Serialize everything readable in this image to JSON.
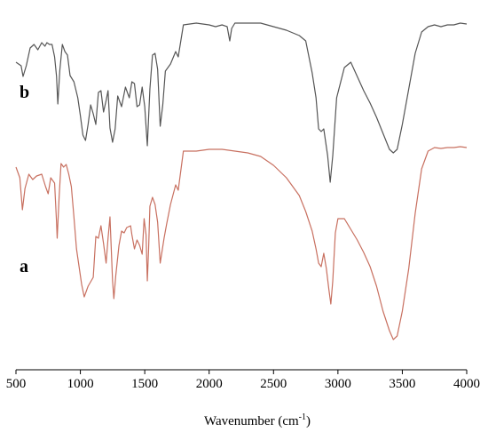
{
  "chart_data": {
    "type": "line",
    "title": "",
    "xlabel_main": "Wavenumber (cm",
    "xlabel_sup": "-1",
    "xlabel_end": ")",
    "ylabel": "",
    "xlim": [
      500,
      4000
    ],
    "xticks": [
      500,
      1000,
      1500,
      2000,
      2500,
      3000,
      3500,
      4000
    ],
    "y_axis_shown": false,
    "grid": false,
    "series": [
      {
        "label": "b",
        "color": "#555555",
        "points": [
          [
            500,
            70
          ],
          [
            540,
            74
          ],
          [
            555,
            86
          ],
          [
            580,
            74
          ],
          [
            610,
            54
          ],
          [
            640,
            50
          ],
          [
            670,
            56
          ],
          [
            700,
            48
          ],
          [
            725,
            52
          ],
          [
            740,
            48
          ],
          [
            760,
            50
          ],
          [
            780,
            50
          ],
          [
            800,
            64
          ],
          [
            815,
            86
          ],
          [
            825,
            117
          ],
          [
            840,
            80
          ],
          [
            860,
            50
          ],
          [
            880,
            58
          ],
          [
            900,
            62
          ],
          [
            920,
            85
          ],
          [
            950,
            92
          ],
          [
            980,
            110
          ],
          [
            1000,
            130
          ],
          [
            1020,
            152
          ],
          [
            1040,
            158
          ],
          [
            1060,
            140
          ],
          [
            1080,
            118
          ],
          [
            1100,
            128
          ],
          [
            1120,
            140
          ],
          [
            1140,
            104
          ],
          [
            1160,
            102
          ],
          [
            1180,
            126
          ],
          [
            1200,
            113
          ],
          [
            1215,
            102
          ],
          [
            1230,
            144
          ],
          [
            1250,
            160
          ],
          [
            1270,
            145
          ],
          [
            1290,
            108
          ],
          [
            1320,
            120
          ],
          [
            1350,
            98
          ],
          [
            1380,
            110
          ],
          [
            1400,
            92
          ],
          [
            1420,
            94
          ],
          [
            1440,
            120
          ],
          [
            1460,
            118
          ],
          [
            1480,
            98
          ],
          [
            1500,
            120
          ],
          [
            1520,
            164
          ],
          [
            1540,
            100
          ],
          [
            1560,
            62
          ],
          [
            1580,
            60
          ],
          [
            1600,
            78
          ],
          [
            1620,
            142
          ],
          [
            1640,
            118
          ],
          [
            1660,
            80
          ],
          [
            1700,
            72
          ],
          [
            1740,
            58
          ],
          [
            1760,
            64
          ],
          [
            1800,
            28
          ],
          [
            1900,
            26
          ],
          [
            2000,
            28
          ],
          [
            2050,
            30
          ],
          [
            2100,
            28
          ],
          [
            2140,
            30
          ],
          [
            2160,
            46
          ],
          [
            2175,
            32
          ],
          [
            2200,
            26
          ],
          [
            2300,
            26
          ],
          [
            2400,
            26
          ],
          [
            2500,
            30
          ],
          [
            2600,
            34
          ],
          [
            2700,
            40
          ],
          [
            2750,
            46
          ],
          [
            2800,
            82
          ],
          [
            2830,
            110
          ],
          [
            2850,
            145
          ],
          [
            2870,
            148
          ],
          [
            2890,
            145
          ],
          [
            2920,
            175
          ],
          [
            2940,
            205
          ],
          [
            2960,
            175
          ],
          [
            2990,
            110
          ],
          [
            3050,
            76
          ],
          [
            3100,
            70
          ],
          [
            3150,
            86
          ],
          [
            3200,
            102
          ],
          [
            3250,
            116
          ],
          [
            3300,
            132
          ],
          [
            3350,
            150
          ],
          [
            3400,
            168
          ],
          [
            3430,
            172
          ],
          [
            3460,
            168
          ],
          [
            3500,
            140
          ],
          [
            3550,
            100
          ],
          [
            3600,
            60
          ],
          [
            3650,
            36
          ],
          [
            3700,
            30
          ],
          [
            3750,
            28
          ],
          [
            3800,
            30
          ],
          [
            3850,
            28
          ],
          [
            3900,
            28
          ],
          [
            3950,
            26
          ],
          [
            4000,
            27
          ]
        ]
      },
      {
        "label": "a",
        "color": "#c87060",
        "points": [
          [
            500,
            188
          ],
          [
            530,
            200
          ],
          [
            550,
            236
          ],
          [
            570,
            212
          ],
          [
            600,
            196
          ],
          [
            630,
            202
          ],
          [
            660,
            198
          ],
          [
            700,
            196
          ],
          [
            730,
            210
          ],
          [
            750,
            218
          ],
          [
            770,
            200
          ],
          [
            800,
            206
          ],
          [
            815,
            250
          ],
          [
            820,
            268
          ],
          [
            835,
            222
          ],
          [
            850,
            184
          ],
          [
            870,
            188
          ],
          [
            890,
            185
          ],
          [
            910,
            196
          ],
          [
            930,
            210
          ],
          [
            950,
            244
          ],
          [
            970,
            280
          ],
          [
            990,
            300
          ],
          [
            1010,
            320
          ],
          [
            1030,
            334
          ],
          [
            1060,
            322
          ],
          [
            1100,
            312
          ],
          [
            1120,
            266
          ],
          [
            1140,
            268
          ],
          [
            1160,
            254
          ],
          [
            1180,
            274
          ],
          [
            1200,
            296
          ],
          [
            1215,
            268
          ],
          [
            1230,
            244
          ],
          [
            1250,
            316
          ],
          [
            1260,
            336
          ],
          [
            1275,
            310
          ],
          [
            1300,
            276
          ],
          [
            1320,
            260
          ],
          [
            1340,
            262
          ],
          [
            1360,
            256
          ],
          [
            1390,
            254
          ],
          [
            1400,
            264
          ],
          [
            1420,
            280
          ],
          [
            1440,
            270
          ],
          [
            1460,
            276
          ],
          [
            1480,
            286
          ],
          [
            1495,
            246
          ],
          [
            1510,
            264
          ],
          [
            1520,
            316
          ],
          [
            1530,
            280
          ],
          [
            1540,
            232
          ],
          [
            1560,
            222
          ],
          [
            1580,
            230
          ],
          [
            1600,
            250
          ],
          [
            1620,
            296
          ],
          [
            1650,
            268
          ],
          [
            1670,
            252
          ],
          [
            1700,
            230
          ],
          [
            1740,
            208
          ],
          [
            1760,
            214
          ],
          [
            1800,
            170
          ],
          [
            1900,
            170
          ],
          [
            2000,
            168
          ],
          [
            2100,
            168
          ],
          [
            2200,
            170
          ],
          [
            2300,
            172
          ],
          [
            2400,
            176
          ],
          [
            2500,
            186
          ],
          [
            2600,
            200
          ],
          [
            2700,
            220
          ],
          [
            2750,
            238
          ],
          [
            2800,
            260
          ],
          [
            2830,
            280
          ],
          [
            2850,
            296
          ],
          [
            2870,
            300
          ],
          [
            2890,
            285
          ],
          [
            2910,
            302
          ],
          [
            2930,
            326
          ],
          [
            2945,
            342
          ],
          [
            2960,
            316
          ],
          [
            2980,
            262
          ],
          [
            3000,
            246
          ],
          [
            3050,
            246
          ],
          [
            3100,
            258
          ],
          [
            3150,
            270
          ],
          [
            3200,
            284
          ],
          [
            3250,
            300
          ],
          [
            3300,
            322
          ],
          [
            3350,
            350
          ],
          [
            3400,
            372
          ],
          [
            3430,
            382
          ],
          [
            3460,
            378
          ],
          [
            3500,
            350
          ],
          [
            3550,
            302
          ],
          [
            3600,
            240
          ],
          [
            3650,
            190
          ],
          [
            3700,
            170
          ],
          [
            3750,
            166
          ],
          [
            3800,
            167
          ],
          [
            3850,
            166
          ],
          [
            3900,
            166
          ],
          [
            3950,
            165
          ],
          [
            4000,
            166
          ]
        ]
      }
    ]
  }
}
